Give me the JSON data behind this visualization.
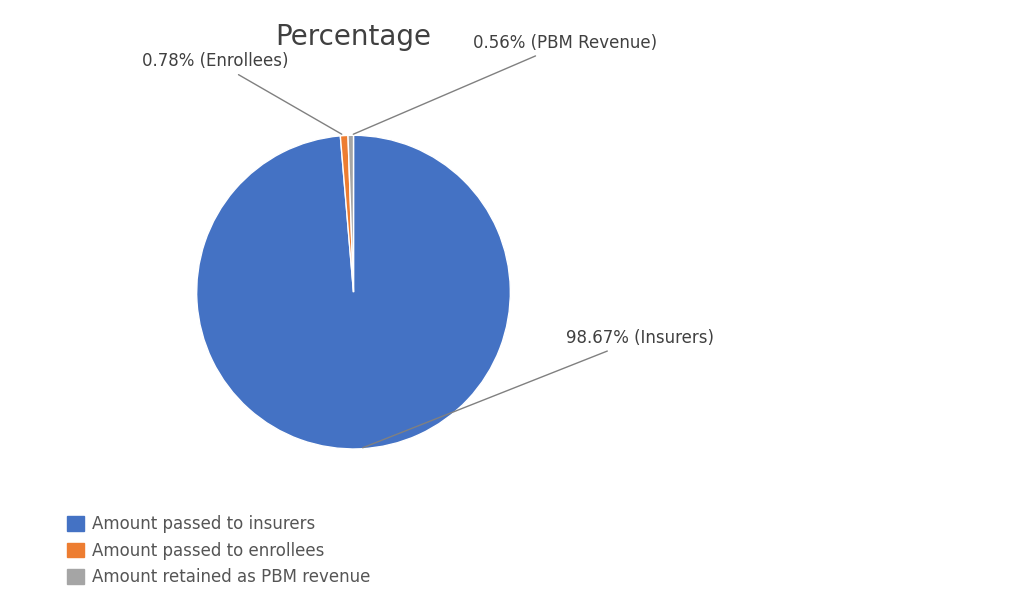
{
  "title": "Percentage",
  "slices": [
    98.67,
    0.78,
    0.56
  ],
  "labels": [
    "98.67% (Insurers)",
    "0.78% (Enrollees)",
    "0.56% (PBM Revenue)"
  ],
  "colors": [
    "#4472C4",
    "#ED7D31",
    "#A5A5A5"
  ],
  "legend_labels": [
    "Amount passed to insurers",
    "Amount passed to enrollees",
    "Amount retained as PBM revenue"
  ],
  "title_fontsize": 20,
  "legend_fontsize": 12,
  "label_fontsize": 12,
  "background_color": "#FFFFFF",
  "startangle": 90
}
